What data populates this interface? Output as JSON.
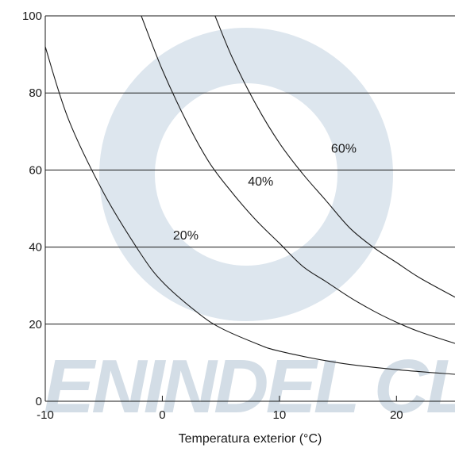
{
  "chart_data": {
    "type": "line",
    "title": "",
    "xlabel": "Temperatura exterior (°C)",
    "ylabel": "",
    "xlim": [
      -10,
      25
    ],
    "ylim": [
      0,
      100
    ],
    "x_ticks": [
      -10,
      0,
      10,
      20
    ],
    "y_ticks": [
      0,
      20,
      40,
      60,
      80,
      100
    ],
    "x_tick_labels": [
      "-10",
      "0",
      "10",
      "20"
    ],
    "y_tick_labels": [
      "0",
      "20",
      "40",
      "60",
      "80",
      "100"
    ],
    "grid": "horizontal",
    "watermark": "ENINDEL CL",
    "colors": {
      "line": "#1a1a1a",
      "grid": "#1a1a1a",
      "watermark": "#c9d6e2"
    },
    "series": [
      {
        "name": "20%",
        "x": [
          -10,
          -8,
          -5,
          -2,
          0,
          3,
          5,
          8,
          10,
          15,
          20,
          25
        ],
        "y": [
          92,
          73,
          54,
          39,
          31,
          23,
          19,
          15,
          13,
          10,
          8.2,
          7
        ]
      },
      {
        "name": "40%",
        "x": [
          -1.8,
          0,
          2,
          4,
          6,
          8,
          10,
          12,
          14,
          16,
          18,
          20,
          22,
          25
        ],
        "y": [
          100,
          86,
          73,
          62,
          54,
          47,
          41,
          35,
          31,
          27,
          23.5,
          20.5,
          18,
          15
        ]
      },
      {
        "name": "60%",
        "x": [
          4.5,
          6,
          8,
          10,
          12,
          14,
          16,
          18,
          20,
          22,
          25
        ],
        "y": [
          100,
          89,
          77,
          67,
          59,
          52,
          45,
          40,
          36,
          32,
          27
        ]
      }
    ],
    "curve_labels": [
      {
        "text": "20%",
        "x": 2,
        "y": 42
      },
      {
        "text": "40%",
        "x": 8.4,
        "y": 56
      },
      {
        "text": "60%",
        "x": 15.5,
        "y": 64.5
      }
    ]
  }
}
